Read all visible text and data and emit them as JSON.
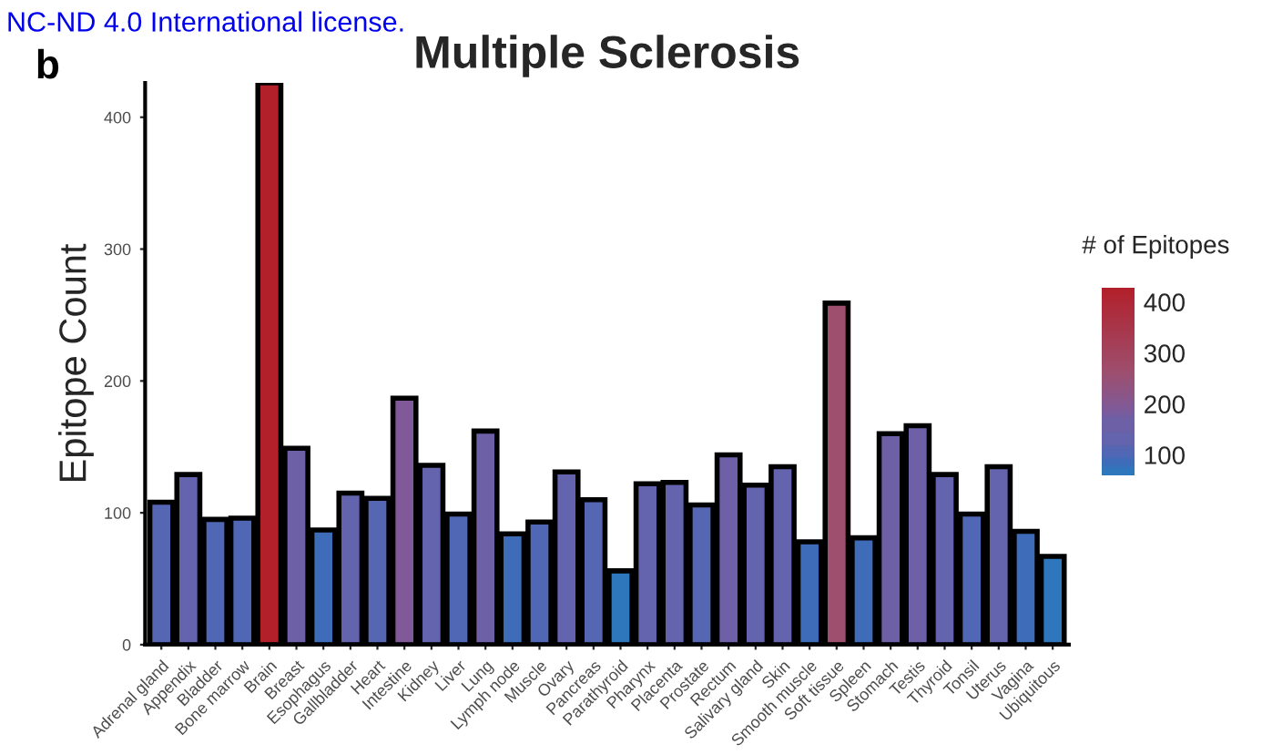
{
  "chart_data": {
    "type": "bar",
    "title": "Multiple Sclerosis",
    "ylabel": "Epitope Count",
    "legend_title": "# of Epitopes",
    "annotations": [
      "NC-ND 4.0 International license.",
      "b"
    ],
    "categories": [
      "Adrenal gland",
      "Appendix",
      "Bladder",
      "Bone marrow",
      "Brain",
      "Breast",
      "Esophagus",
      "Gallbladder",
      "Heart",
      "Intestine",
      "Kidney",
      "Liver",
      "Lung",
      "Lymph node",
      "Muscle",
      "Ovary",
      "Pancreas",
      "Parathyroid",
      "Pharynx",
      "Placenta",
      "Prostate",
      "Rectum",
      "Salivary gland",
      "Skin",
      "Smooth muscle",
      "Soft tissue",
      "Spleen",
      "Stomach",
      "Testis",
      "Thyroid",
      "Tonsil",
      "Uterus",
      "Vagina",
      "Ubiquitous"
    ],
    "values": [
      108,
      129,
      95,
      96,
      426,
      149,
      87,
      115,
      111,
      187,
      136,
      99,
      162,
      84,
      93,
      131,
      110,
      56,
      122,
      123,
      106,
      144,
      121,
      135,
      78,
      259,
      81,
      160,
      166,
      129,
      99,
      135,
      86,
      67
    ],
    "colors": [
      "#5566b3",
      "#6364ad",
      "#4f67b5",
      "#4f67b5",
      "#b2202a",
      "#6d60a6",
      "#3f6cb8",
      "#6364ad",
      "#5566b3",
      "#805a98",
      "#6364ad",
      "#4f67b5",
      "#6d60a6",
      "#3f6cb8",
      "#4f67b5",
      "#6364ad",
      "#5566b3",
      "#2f77bd",
      "#6364ad",
      "#6364ad",
      "#5566b3",
      "#6d60a6",
      "#6364ad",
      "#6364ad",
      "#3f6cb8",
      "#9e4f6e",
      "#3f6cb8",
      "#6d60a6",
      "#6d60a6",
      "#6364ad",
      "#4f67b5",
      "#6364ad",
      "#3f6cb8",
      "#2f77bd"
    ],
    "ylim": [
      0,
      426
    ],
    "yticks": [
      0,
      100,
      200,
      300,
      400
    ],
    "clim": [
      56,
      426
    ],
    "cticks": [
      100,
      200,
      300,
      400
    ],
    "grid": false
  }
}
